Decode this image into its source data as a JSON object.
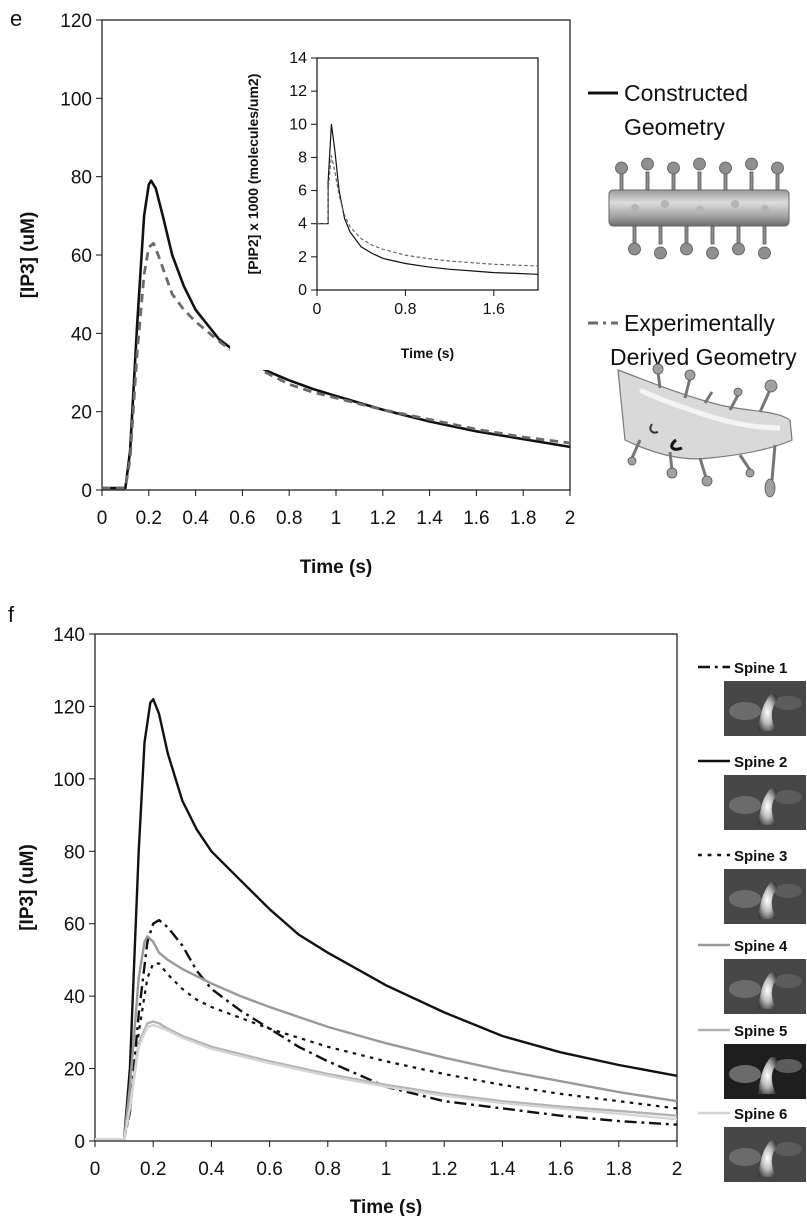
{
  "chart_data": [
    {
      "panel": "e",
      "type": "line",
      "xlabel": "Time (s)",
      "ylabel": "[IP3] (uM)",
      "xlim": [
        0,
        2
      ],
      "ylim": [
        0,
        120
      ],
      "xticks": [
        "0",
        "0.2",
        "0.4",
        "0.6",
        "0.8",
        "1",
        "1.2",
        "1.4",
        "1.6",
        "1.8",
        "2"
      ],
      "yticks": [
        "0",
        "20",
        "40",
        "60",
        "80",
        "100",
        "120"
      ],
      "legend": "right",
      "series": [
        {
          "name": "Constructed Geometry",
          "color": "#111111",
          "style": "solid",
          "x": [
            0,
            0.1,
            0.12,
            0.15,
            0.18,
            0.2,
            0.21,
            0.23,
            0.26,
            0.3,
            0.35,
            0.4,
            0.5,
            0.6,
            0.7,
            0.8,
            0.9,
            1.0,
            1.2,
            1.4,
            1.6,
            1.8,
            2.0
          ],
          "y": [
            0.5,
            0.5,
            10,
            42,
            70,
            78,
            79,
            77,
            70,
            60,
            52,
            46,
            38.5,
            34,
            30.5,
            28,
            25.8,
            24,
            20.5,
            17.5,
            15,
            13,
            11
          ]
        },
        {
          "name": "Experimentally Derived Geometry",
          "color": "#6a6a6a",
          "style": "dashed",
          "x": [
            0,
            0.1,
            0.12,
            0.15,
            0.18,
            0.2,
            0.22,
            0.24,
            0.27,
            0.3,
            0.35,
            0.4,
            0.5,
            0.6,
            0.7,
            0.8,
            0.9,
            1.0,
            1.2,
            1.4,
            1.6,
            1.8,
            2.0
          ],
          "y": [
            0.5,
            0.5,
            8,
            35,
            55,
            62,
            63,
            60,
            55,
            50,
            46,
            43,
            38,
            33.5,
            30,
            27,
            25,
            23.5,
            20.5,
            18,
            15.5,
            13.5,
            12
          ]
        }
      ]
    },
    {
      "panel": "e-inset",
      "type": "line",
      "xlabel": "Time (s)",
      "ylabel": "[PIP2] x 1000 (molecules/um2)",
      "xlim": [
        0,
        2
      ],
      "ylim": [
        0,
        14
      ],
      "xticks": [
        "0",
        "0.8",
        "1.6"
      ],
      "yticks": [
        "0",
        "2",
        "4",
        "6",
        "8",
        "10",
        "12",
        "14"
      ],
      "series": [
        {
          "color": "#111111",
          "style": "solid",
          "x": [
            0,
            0.1,
            0.1,
            0.13,
            0.16,
            0.2,
            0.25,
            0.3,
            0.4,
            0.5,
            0.6,
            0.8,
            1.0,
            1.2,
            1.4,
            1.6,
            1.8,
            2.0
          ],
          "y": [
            4,
            4,
            6.5,
            10,
            8.5,
            6,
            4.3,
            3.5,
            2.6,
            2.2,
            1.9,
            1.6,
            1.4,
            1.25,
            1.15,
            1.05,
            1.0,
            0.95
          ]
        },
        {
          "color": "#666666",
          "style": "dashed",
          "x": [
            0,
            0.1,
            0.1,
            0.13,
            0.16,
            0.2,
            0.25,
            0.3,
            0.4,
            0.5,
            0.6,
            0.8,
            1.0,
            1.2,
            1.4,
            1.6,
            1.8,
            2.0
          ],
          "y": [
            4,
            4,
            6,
            8.1,
            7.2,
            5.7,
            4.5,
            3.8,
            3.1,
            2.7,
            2.45,
            2.1,
            1.9,
            1.75,
            1.65,
            1.55,
            1.5,
            1.45
          ]
        }
      ]
    },
    {
      "panel": "f",
      "type": "line",
      "xlabel": "Time (s)",
      "ylabel": "[IP3] (uM)",
      "xlim": [
        0,
        2
      ],
      "ylim": [
        0,
        140
      ],
      "xticks": [
        "0",
        "0.2",
        "0.4",
        "0.6",
        "0.8",
        "1",
        "1.2",
        "1.4",
        "1.6",
        "1.8",
        "2"
      ],
      "yticks": [
        "0",
        "20",
        "40",
        "60",
        "80",
        "100",
        "120",
        "140"
      ],
      "legend": "right",
      "series": [
        {
          "name": "Spine 1",
          "color": "#111111",
          "style": "dashdot",
          "x": [
            0,
            0.1,
            0.12,
            0.15,
            0.18,
            0.2,
            0.22,
            0.25,
            0.3,
            0.35,
            0.4,
            0.5,
            0.6,
            0.7,
            0.8,
            1.0,
            1.2,
            1.4,
            1.6,
            1.8,
            2.0
          ],
          "y": [
            0.5,
            0.5,
            8,
            35,
            55,
            60,
            61,
            59,
            54,
            47,
            42,
            36,
            31,
            26,
            22,
            15,
            11,
            9,
            7,
            5.5,
            4.5
          ]
        },
        {
          "name": "Spine 2",
          "color": "#111111",
          "style": "solid",
          "x": [
            0,
            0.1,
            0.12,
            0.15,
            0.17,
            0.19,
            0.2,
            0.22,
            0.25,
            0.3,
            0.35,
            0.4,
            0.5,
            0.6,
            0.7,
            0.8,
            1.0,
            1.2,
            1.4,
            1.6,
            1.8,
            2.0
          ],
          "y": [
            0.5,
            0.5,
            20,
            80,
            110,
            121,
            122,
            118,
            107,
            94,
            86,
            80,
            72,
            64,
            57,
            52,
            43,
            35.5,
            29,
            24.5,
            21,
            18
          ]
        },
        {
          "name": "Spine 3",
          "color": "#111111",
          "style": "dotted",
          "x": [
            0,
            0.1,
            0.12,
            0.15,
            0.18,
            0.2,
            0.22,
            0.25,
            0.3,
            0.35,
            0.4,
            0.5,
            0.6,
            0.8,
            1.0,
            1.2,
            1.4,
            1.6,
            1.8,
            2.0
          ],
          "y": [
            0.5,
            0.5,
            8,
            30,
            45,
            49,
            49,
            46,
            42,
            39,
            37,
            34,
            31,
            26,
            22,
            18.5,
            15.5,
            13,
            11,
            9
          ]
        },
        {
          "name": "Spine 4",
          "color": "#999999",
          "style": "solid",
          "x": [
            0,
            0.1,
            0.12,
            0.15,
            0.17,
            0.18,
            0.2,
            0.22,
            0.25,
            0.3,
            0.35,
            0.4,
            0.5,
            0.6,
            0.8,
            1.0,
            1.2,
            1.4,
            1.6,
            1.8,
            2.0
          ],
          "y": [
            0.5,
            0.5,
            15,
            45,
            55,
            56.5,
            55,
            52,
            50,
            47.5,
            45.5,
            43.5,
            40,
            37,
            31.5,
            27,
            23,
            19.5,
            16.5,
            13.5,
            11
          ]
        },
        {
          "name": "Spine 5",
          "color": "#b3b3b3",
          "style": "solid",
          "x": [
            0,
            0.1,
            0.12,
            0.15,
            0.18,
            0.2,
            0.22,
            0.25,
            0.3,
            0.4,
            0.5,
            0.6,
            0.8,
            1.0,
            1.2,
            1.4,
            1.6,
            1.8,
            2.0
          ],
          "y": [
            0.5,
            0.5,
            10,
            27,
            32.5,
            33,
            32.5,
            31,
            29,
            26,
            24,
            22,
            18.5,
            15.5,
            13,
            11,
            9.5,
            8.3,
            7
          ]
        },
        {
          "name": "Spine 6",
          "color": "#d4d4d4",
          "style": "solid",
          "x": [
            0,
            0.1,
            0.12,
            0.15,
            0.18,
            0.2,
            0.22,
            0.25,
            0.3,
            0.4,
            0.5,
            0.6,
            0.8,
            1.0,
            1.2,
            1.4,
            1.6,
            1.8,
            2.0
          ],
          "y": [
            0.5,
            0.5,
            9,
            26,
            31.5,
            32,
            31.5,
            30.5,
            28.5,
            25.5,
            23.5,
            21.5,
            18,
            15,
            12.5,
            10.5,
            9,
            7.5,
            6
          ]
        }
      ]
    }
  ],
  "labels": {
    "panel_e": "e",
    "panel_f": "f",
    "legend_e": [
      "Constructed",
      "Geometry",
      "Experimentally",
      "Derived Geometry"
    ]
  },
  "icons": {
    "constructed_geometry": "constructed-geometry-render",
    "derived_geometry": "derived-geometry-render",
    "spine_images": [
      "spine-1-image",
      "spine-2-image",
      "spine-3-image",
      "spine-4-image",
      "spine-5-image",
      "spine-6-image"
    ]
  }
}
